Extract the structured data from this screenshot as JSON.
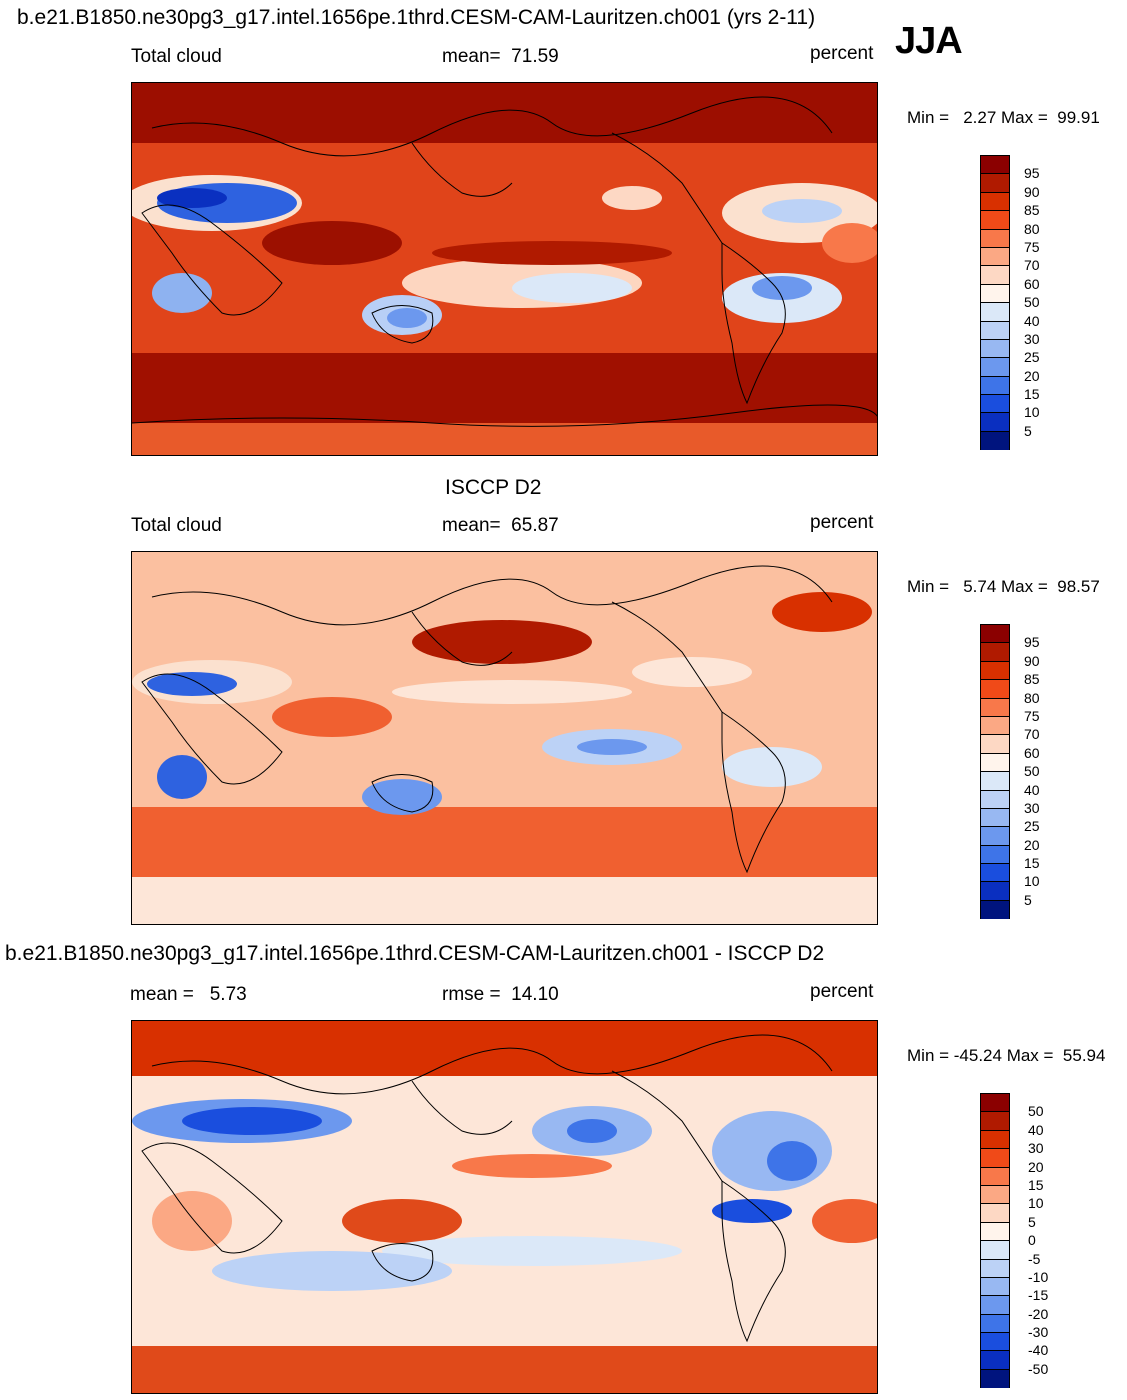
{
  "figure": {
    "top_title": "b.e21.B1850.ne30pg3_g17.intel.1656pe.1thrd.CESM-CAM-Lauritzen.ch001 (yrs 2-11)",
    "season": "JJA",
    "mid_title": "ISCCP D2",
    "diff_title": "b.e21.B1850.ne30pg3_g17.intel.1656pe.1thrd.CESM-CAM-Lauritzen.ch001 - ISCCP D2"
  },
  "panels": [
    {
      "left_label": "Total cloud",
      "center_label": "mean=  71.59",
      "units": "percent",
      "minmax": "Min =   2.27 Max =  99.91",
      "colorbar_labels": [
        "95",
        "90",
        "85",
        "80",
        "75",
        "70",
        "60",
        "50",
        "40",
        "30",
        "25",
        "20",
        "15",
        "10",
        "5"
      ]
    },
    {
      "left_label": "Total cloud",
      "center_label": "mean=  65.87",
      "units": "percent",
      "minmax": "Min =   5.74 Max =  98.57",
      "colorbar_labels": [
        "95",
        "90",
        "85",
        "80",
        "75",
        "70",
        "60",
        "50",
        "40",
        "30",
        "25",
        "20",
        "15",
        "10",
        "5"
      ]
    },
    {
      "left_label": "mean =   5.73",
      "center_label": "rmse =  14.10",
      "units": "percent",
      "minmax": "Min = -45.24 Max =  55.94",
      "colorbar_labels": [
        "50",
        "40",
        "30",
        "20",
        "15",
        "10",
        "5",
        "0",
        "-5",
        "-10",
        "-15",
        "-20",
        "-30",
        "-40",
        "-50"
      ]
    }
  ],
  "chart_data": [
    {
      "type": "heatmap",
      "title": "Total cloud (model, JJA)",
      "variable": "Total cloud",
      "units": "percent",
      "mean": 71.59,
      "min": 2.27,
      "max": 99.91,
      "contour_levels": [
        5,
        10,
        15,
        20,
        25,
        30,
        40,
        50,
        60,
        70,
        75,
        80,
        85,
        90,
        95
      ]
    },
    {
      "type": "heatmap",
      "title": "ISCCP D2",
      "variable": "Total cloud",
      "units": "percent",
      "mean": 65.87,
      "min": 5.74,
      "max": 98.57,
      "contour_levels": [
        5,
        10,
        15,
        20,
        25,
        30,
        40,
        50,
        60,
        70,
        75,
        80,
        85,
        90,
        95
      ]
    },
    {
      "type": "heatmap",
      "title": "Model - ISCCP D2",
      "units": "percent",
      "mean": 5.73,
      "rmse": 14.1,
      "min": -45.24,
      "max": 55.94,
      "contour_levels": [
        -50,
        -40,
        -30,
        -20,
        -15,
        -10,
        -5,
        0,
        5,
        10,
        15,
        20,
        30,
        40,
        50
      ]
    }
  ],
  "colors": {
    "colorbar": [
      "#8b0000",
      "#b01a00",
      "#d83000",
      "#f04a18",
      "#f8784a",
      "#fba884",
      "#fdd8c4",
      "#fff4ec",
      "#dbe8f8",
      "#bcd2f6",
      "#98b8f2",
      "#6c98ee",
      "#3e74e8",
      "#1a4ede",
      "#0a2fc0",
      "#00147e"
    ]
  }
}
